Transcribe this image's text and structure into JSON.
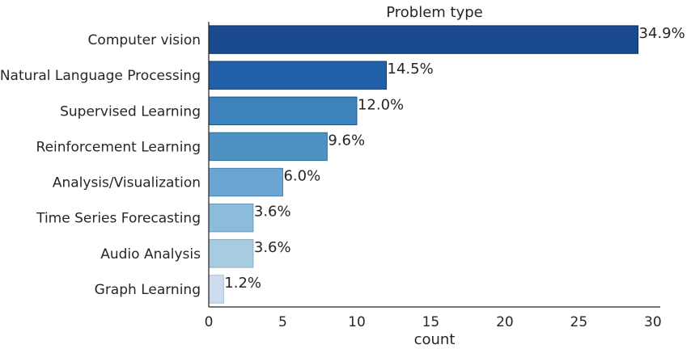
{
  "chart_data": {
    "type": "bar",
    "orientation": "horizontal",
    "title": "Problem type",
    "xlabel": "count",
    "ylabel": "",
    "xlim": [
      0,
      30.5
    ],
    "xticks": [
      "0",
      "5",
      "10",
      "15",
      "20",
      "25",
      "30"
    ],
    "grid": false,
    "categories": [
      "Computer vision",
      "Natural Language Processing",
      "Supervised Learning",
      "Reinforcement Learning",
      "Analysis/Visualization",
      "Time Series Forecasting",
      "Audio Analysis",
      "Graph Learning"
    ],
    "values": [
      29,
      12,
      10,
      8,
      5,
      3,
      3,
      1
    ],
    "data_labels": [
      "34.9%",
      "14.5%",
      "12.0%",
      "9.6%",
      "6.0%",
      "3.6%",
      "3.6%",
      "1.2%"
    ],
    "colors": [
      "#1a4a8f",
      "#215fa8",
      "#3c83bd",
      "#4e92c4",
      "#6aa6d3",
      "#8bbcd9",
      "#a7cce2",
      "#cddcec"
    ],
    "edge_colors": [
      "#0f2e5c",
      "#153c6d",
      "#245580",
      "#2f6a8f",
      "#4f80a8",
      "#6f97b2",
      "#88aabd",
      "#a8bdd0"
    ]
  }
}
